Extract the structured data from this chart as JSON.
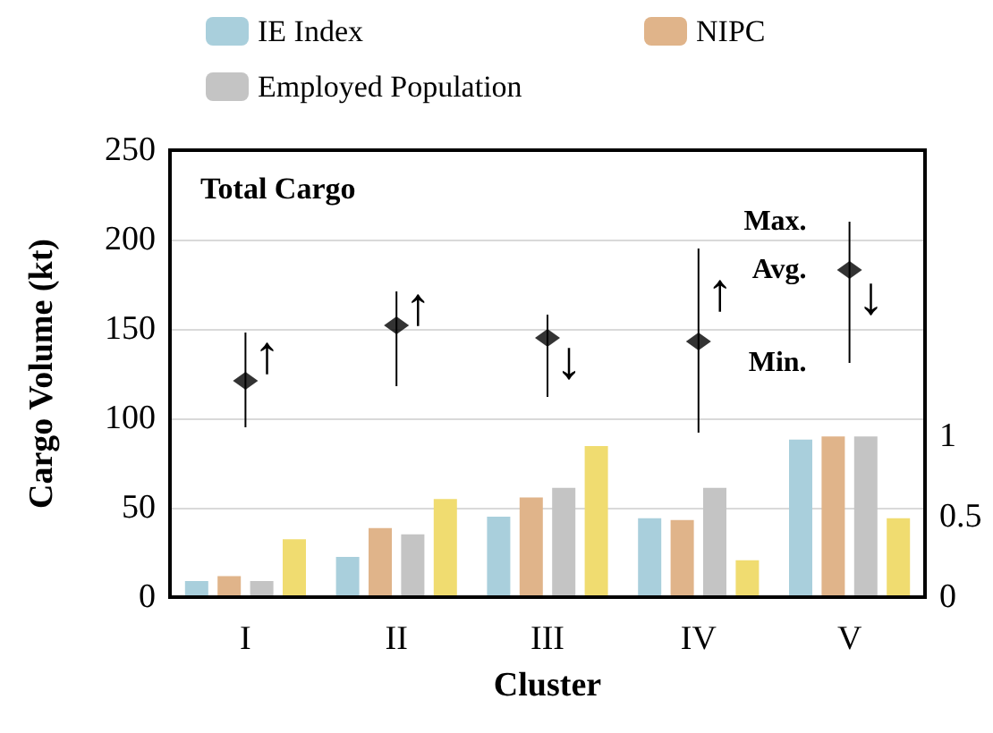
{
  "chart_data": {
    "type": "bar",
    "title": "Total Cargo",
    "xlabel": "Cluster",
    "ylabel": "Cargo Volume (kt)",
    "categories": [
      "I",
      "II",
      "III",
      "IV",
      "V"
    ],
    "series": [
      {
        "name": "IE Index",
        "color": "#a9cfdc",
        "axis": "y2",
        "values": [
          0.1,
          0.25,
          0.5,
          0.49,
          0.98
        ]
      },
      {
        "name": "NIPC",
        "color": "#e0b48a",
        "axis": "y2",
        "values": [
          0.13,
          0.43,
          0.62,
          0.48,
          1.0
        ]
      },
      {
        "name": "Employed Population",
        "color": "#c4c4c4",
        "axis": "y2",
        "values": [
          0.1,
          0.39,
          0.68,
          0.68,
          1.0
        ]
      },
      {
        "color": "#f0dc70",
        "axis": "y2",
        "values": [
          0.36,
          0.61,
          0.94,
          0.23,
          0.49
        ]
      },
      {
        "type": "scatter",
        "color": "#000000",
        "x": [
          "I",
          "II",
          "III",
          "IV",
          "V"
        ],
        "values": [
          121,
          152,
          145,
          143,
          183
        ],
        "errors": [
          [
            95,
            148
          ],
          [
            118,
            171
          ],
          [
            112,
            158
          ],
          [
            92,
            195
          ],
          [
            131,
            210
          ]
        ]
      }
    ],
    "ylim": [
      0,
      250
    ],
    "yticks": [
      0,
      50,
      100,
      150,
      200,
      250
    ],
    "y2lim": [
      0,
      2.78
    ],
    "y2ticks": [
      0,
      0.5,
      1
    ],
    "annotations": [
      {
        "text": "↑",
        "x": "I",
        "y": 135
      },
      {
        "text": "↑",
        "x": "II",
        "y": 162
      },
      {
        "text": "↓",
        "x": "III",
        "y": 132
      },
      {
        "text": "↑",
        "x": "IV",
        "y": 170
      },
      {
        "text": "↓",
        "x": "V",
        "y": 168
      },
      {
        "text": "Max.",
        "x": "V",
        "y": 210
      },
      {
        "text": "Avg.",
        "x": "V",
        "y": 183
      },
      {
        "text": "Min.",
        "x": "V",
        "y": 131
      }
    ],
    "grid": "y",
    "legend": "top"
  }
}
